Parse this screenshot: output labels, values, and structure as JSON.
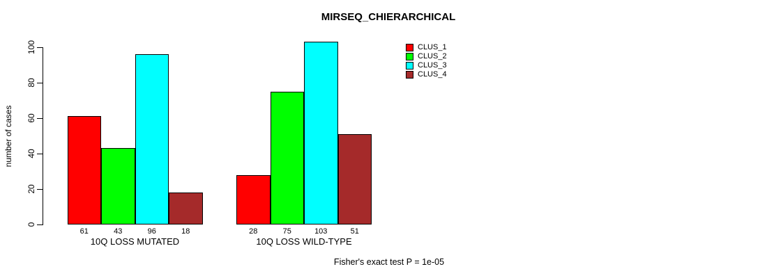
{
  "title": "MIRSEQ_CHIERARCHICAL",
  "footer": "Fisher's exact test P = 1e-05",
  "y_axis": {
    "label": "number of cases",
    "ticks": [
      0,
      20,
      40,
      60,
      80,
      100
    ]
  },
  "legend": {
    "position": "top-right",
    "items": [
      {
        "label": "CLUS_1",
        "color": "#FF0000"
      },
      {
        "label": "CLUS_2",
        "color": "#00FF00"
      },
      {
        "label": "CLUS_3",
        "color": "#00FFFF"
      },
      {
        "label": "CLUS_4",
        "color": "#A52A2A"
      }
    ]
  },
  "chart_data": {
    "type": "bar",
    "title": "MIRSEQ_CHIERARCHICAL",
    "xlabel": "",
    "ylabel": "number of cases",
    "categories": [
      "10Q LOSS MUTATED",
      "10Q LOSS WILD-TYPE"
    ],
    "series": [
      {
        "name": "CLUS_1",
        "color": "#FF0000",
        "values": [
          61,
          28
        ]
      },
      {
        "name": "CLUS_2",
        "color": "#00FF00",
        "values": [
          43,
          75
        ]
      },
      {
        "name": "CLUS_3",
        "color": "#00FFFF",
        "values": [
          96,
          103
        ]
      },
      {
        "name": "CLUS_4",
        "color": "#A52A2A",
        "values": [
          18,
          51
        ]
      }
    ],
    "yticks": [
      0,
      20,
      40,
      60,
      80,
      100
    ],
    "ylim": [
      0,
      103
    ],
    "bar_value_labels": true,
    "grid": false,
    "legend_position": "top-right",
    "annotation": "Fisher's exact test P = 1e-05"
  }
}
